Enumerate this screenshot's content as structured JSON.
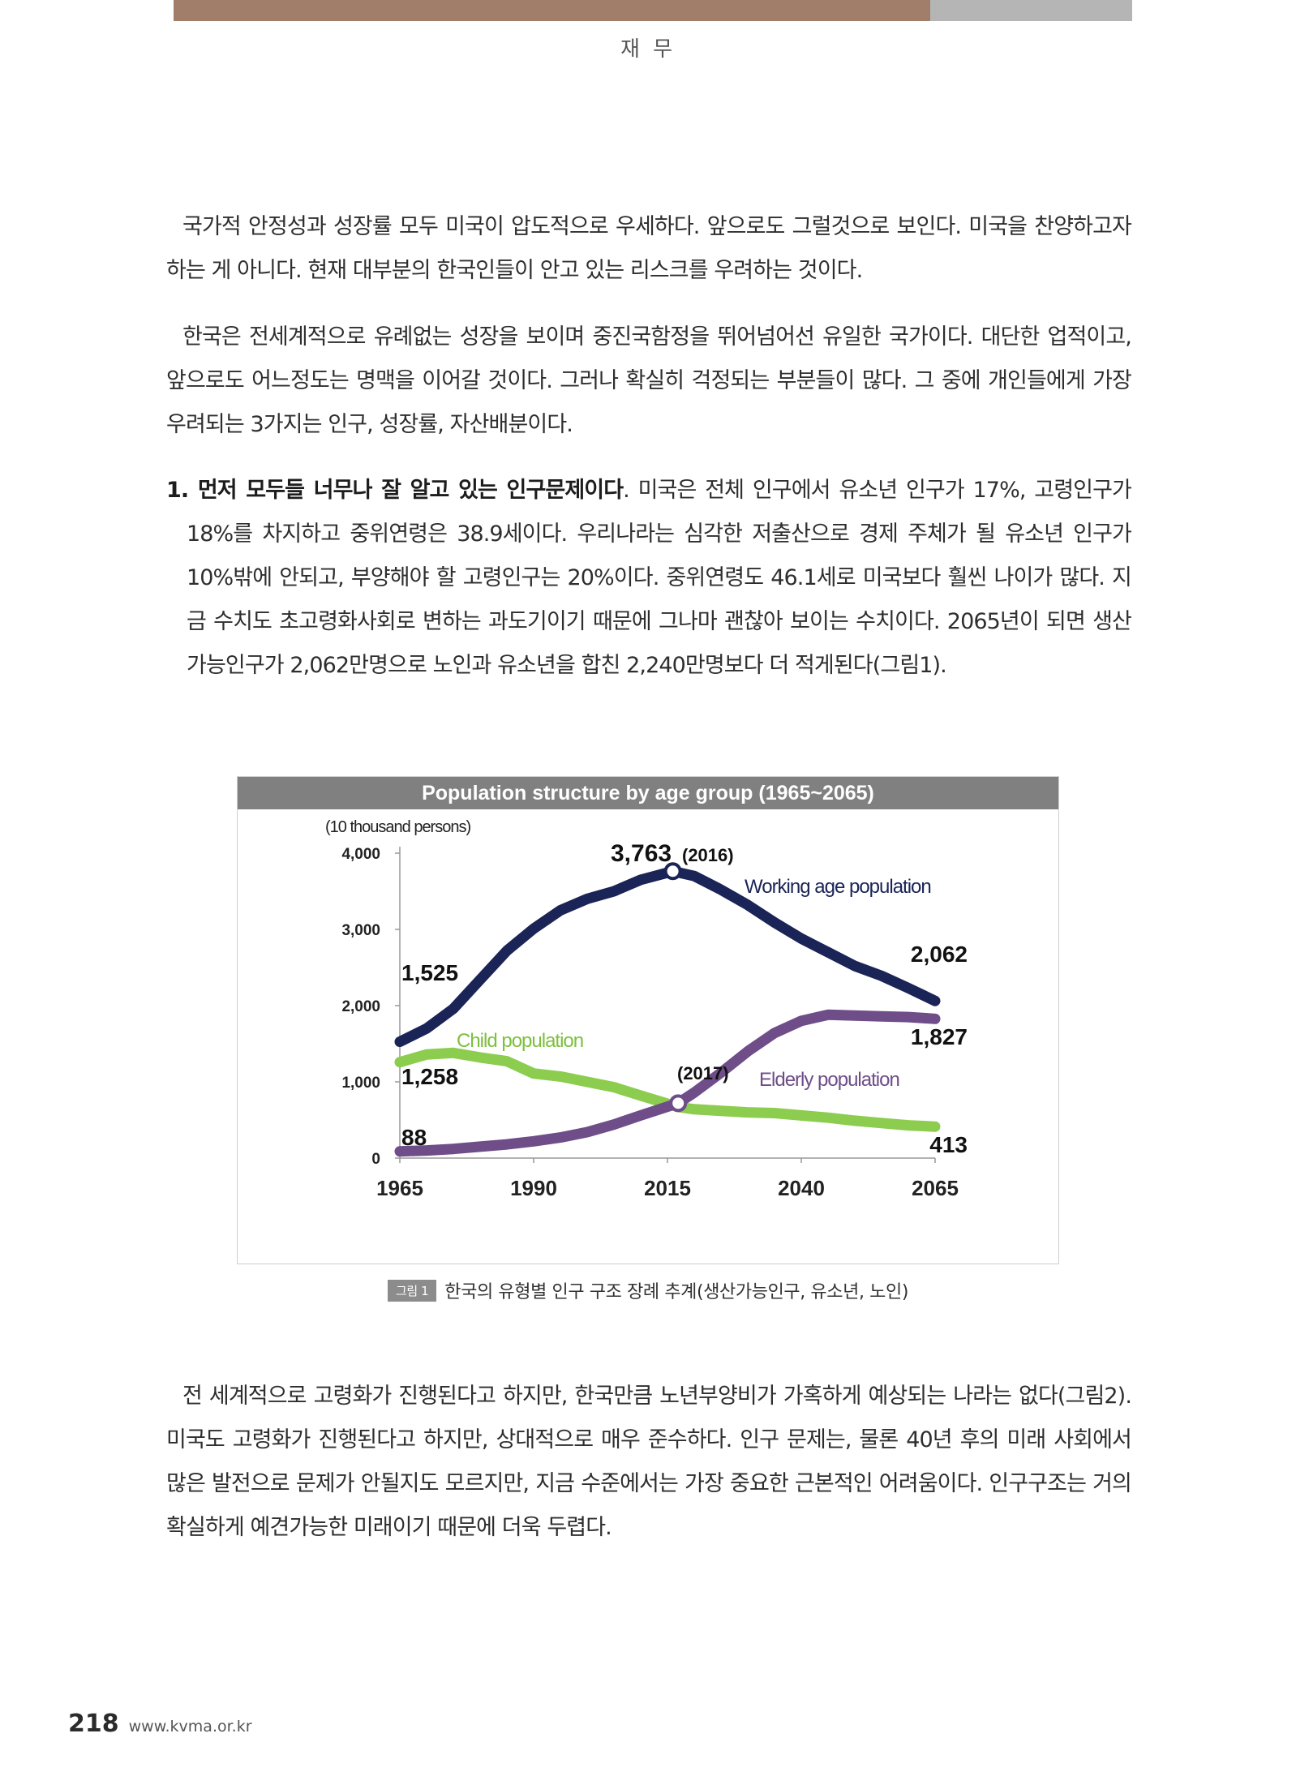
{
  "header": {
    "section": "재 무"
  },
  "paragraphs": {
    "p1": "국가적 안정성과 성장률 모두 미국이 압도적으로 우세하다. 앞으로도 그럴것으로 보인다. 미국을 찬양하고자 하는 게 아니다. 현재 대부분의 한국인들이 안고 있는 리스크를 우려하는 것이다.",
    "p2": "한국은 전세계적으로 유례없는 성장을 보이며 중진국함정을 뛰어넘어선 유일한 국가이다. 대단한 업적이고, 앞으로도 어느정도는 명맥을 이어갈 것이다. 그러나 확실히 걱정되는 부분들이 많다. 그 중에 개인들에게 가장 우려되는 3가지는 인구, 성장률, 자산배분이다.",
    "item1_bold": "1. 먼저 모두들 너무나 잘 알고 있는 인구문제이다",
    "item1_text": ". 미국은 전체 인구에서 유소년 인구가 17%, 고령인구가 18%를 차지하고 중위연령은 38.9세이다. 우리나라는 심각한 저출산으로 경제 주체가 될 유소년 인구가 10%밖에 안되고, 부양해야 할 고령인구는 20%이다. 중위연령도 46.1세로 미국보다 훨씬 나이가 많다. 지금 수치도 초고령화사회로 변하는 과도기이기 때문에 그나마 괜찮아 보이는 수치이다. 2065년이 되면 생산가능인구가 2,062만명으로 노인과 유소년을 합친 2,240만명보다 더 적게된다(그림1).",
    "p4": "전 세계적으로 고령화가 진행된다고 하지만, 한국만큼 노년부양비가 가혹하게 예상되는 나라는 없다(그림2). 미국도 고령화가 진행된다고 하지만, 상대적으로 매우 준수하다. 인구 문제는, 물론 40년 후의 미래 사회에서 많은 발전으로 문제가 안될지도 모르지만, 지금 수준에서는 가장 중요한 근본적인 어려움이다. 인구구조는 거의 확실하게 예견가능한 미래이기 때문에 더욱 두렵다."
  },
  "figure": {
    "tag": "그림 1",
    "caption": "한국의 유형별 인구 구조 장례 추계(생산가능인구, 유소년, 노인)"
  },
  "footer": {
    "page_number": "218",
    "url": "www.kvma.or.kr"
  },
  "chart_data": {
    "type": "line",
    "title": "Population structure by age group (1965~2065)",
    "ylabel": "(10 thousand persons)",
    "xlim": [
      1965,
      2065
    ],
    "ylim": [
      0,
      4000
    ],
    "x_ticks": [
      1965,
      1990,
      2015,
      2040,
      2065
    ],
    "x_tick_labels": [
      "1965",
      "1990",
      "2015",
      "2040",
      "2065"
    ],
    "y_ticks": [
      0,
      1000,
      2000,
      3000,
      4000
    ],
    "y_tick_labels": [
      "0",
      "1,000",
      "2,000",
      "3,000",
      "4,000"
    ],
    "grid": false,
    "colors": {
      "title_bar": "#808080",
      "working": "#1a2456",
      "child": "#8ccd4f",
      "elderly": "#6e4d88"
    },
    "series": [
      {
        "key": "working",
        "name": "Working age population",
        "x": [
          1965,
          1970,
          1975,
          1980,
          1985,
          1990,
          1995,
          2000,
          2005,
          2010,
          2016,
          2020,
          2025,
          2030,
          2035,
          2040,
          2045,
          2050,
          2055,
          2060,
          2065
        ],
        "values": [
          1525,
          1700,
          1960,
          2340,
          2720,
          3010,
          3250,
          3400,
          3500,
          3650,
          3763,
          3700,
          3520,
          3320,
          3090,
          2880,
          2700,
          2520,
          2390,
          2230,
          2062
        ]
      },
      {
        "key": "child",
        "name": "Child population",
        "x": [
          1965,
          1970,
          1975,
          1980,
          1985,
          1990,
          1995,
          2000,
          2005,
          2010,
          2017,
          2020,
          2025,
          2030,
          2035,
          2040,
          2045,
          2050,
          2055,
          2060,
          2065
        ],
        "values": [
          1258,
          1360,
          1380,
          1320,
          1270,
          1110,
          1070,
          1000,
          930,
          820,
          670,
          640,
          620,
          600,
          590,
          560,
          530,
          490,
          460,
          430,
          413
        ]
      },
      {
        "key": "elderly",
        "name": "Elderly population",
        "x": [
          1965,
          1970,
          1975,
          1980,
          1985,
          1990,
          1995,
          2000,
          2005,
          2010,
          2017,
          2020,
          2025,
          2030,
          2035,
          2040,
          2045,
          2050,
          2055,
          2060,
          2065
        ],
        "values": [
          88,
          100,
          120,
          150,
          180,
          220,
          270,
          340,
          440,
          560,
          720,
          860,
          1120,
          1400,
          1640,
          1800,
          1880,
          1870,
          1860,
          1850,
          1827
        ]
      }
    ],
    "annotations": [
      {
        "text": "3,763",
        "sub": "(2016)",
        "x": 2016,
        "y": 3763,
        "marker": true,
        "series": "working"
      },
      {
        "text": "1,525",
        "x": 1965,
        "y": 1525
      },
      {
        "text": "2,062",
        "x": 2065,
        "y": 2062
      },
      {
        "text": "1,258",
        "x": 1965,
        "y": 1258
      },
      {
        "text": "88",
        "x": 1965,
        "y": 88
      },
      {
        "text": "1,827",
        "x": 2065,
        "y": 1827
      },
      {
        "text": "413",
        "x": 2065,
        "y": 413
      },
      {
        "text": "(2017)",
        "x": 2017,
        "y": 720,
        "marker": true,
        "series": "elderly"
      }
    ]
  }
}
